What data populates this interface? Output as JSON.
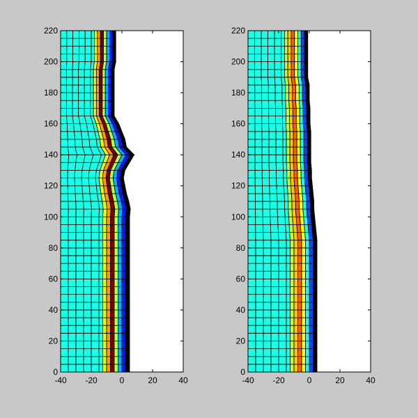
{
  "figure": {
    "background": "#c8c8c8"
  },
  "chart_data": [
    {
      "type": "heatmap",
      "title": "",
      "xlabel": "",
      "ylabel": "",
      "xlim": [
        -40,
        40
      ],
      "ylim": [
        0,
        220
      ],
      "xticks": [
        "-40",
        "-20",
        "0",
        "20",
        "40"
      ],
      "yticks": [
        "0",
        "20",
        "40",
        "60",
        "80",
        "100",
        "120",
        "140",
        "160",
        "180",
        "200",
        "220"
      ],
      "grid": false,
      "colormap": "jet",
      "mesh": {
        "row_height": 5,
        "base_columns_x": [
          -40,
          -35,
          -30,
          -25,
          -20,
          -15,
          -12.5,
          -10,
          -7.5,
          -5,
          -2.5,
          0,
          2.5,
          5
        ],
        "column_values": [
          0.4,
          0.4,
          0.4,
          0.4,
          0.4,
          0.4,
          0.6,
          0.72,
          1.0,
          0.55,
          0.3,
          0.15
        ],
        "right_edge_x": [
          5,
          5,
          5,
          5,
          5,
          5,
          5,
          5,
          5,
          5,
          5,
          5,
          5,
          5,
          5,
          5,
          5,
          5,
          5,
          5,
          5,
          5.5,
          4.5,
          3,
          2,
          1,
          2,
          5,
          8,
          3,
          2,
          0,
          -2,
          -5,
          -5,
          -5,
          -5,
          -5,
          -5,
          -5,
          -4,
          -4,
          -4,
          -4,
          -4
        ]
      }
    },
    {
      "type": "heatmap",
      "title": "",
      "xlabel": "",
      "ylabel": "",
      "xlim": [
        -40,
        40
      ],
      "ylim": [
        0,
        220
      ],
      "xticks": [
        "-40",
        "-20",
        "0",
        "20",
        "40"
      ],
      "yticks": [
        "0",
        "20",
        "40",
        "60",
        "80",
        "100",
        "120",
        "140",
        "160",
        "180",
        "200",
        "220"
      ],
      "grid": false,
      "colormap": "jet",
      "mesh": {
        "row_height": 5,
        "base_columns_x": [
          -40,
          -35,
          -30,
          -25,
          -20,
          -15,
          -12.5,
          -10,
          -7.5,
          -5,
          -2.5,
          0,
          2.5,
          5
        ],
        "column_values": [
          0.4,
          0.4,
          0.4,
          0.4,
          0.4,
          0.4,
          0.55,
          0.68,
          0.78,
          0.62,
          0.4,
          0.2
        ],
        "right_edge_x": [
          5,
          5,
          5,
          5,
          5,
          5,
          5,
          5,
          5,
          5,
          5,
          5,
          5,
          5,
          5,
          5,
          5,
          5,
          4.5,
          4,
          3.5,
          3,
          3,
          2.5,
          2,
          1.5,
          1.5,
          1,
          1,
          1,
          1,
          1,
          0.5,
          0.5,
          0.5,
          0,
          0,
          0,
          -1,
          -1,
          -1,
          -1,
          -1,
          -1,
          -1
        ]
      }
    }
  ]
}
